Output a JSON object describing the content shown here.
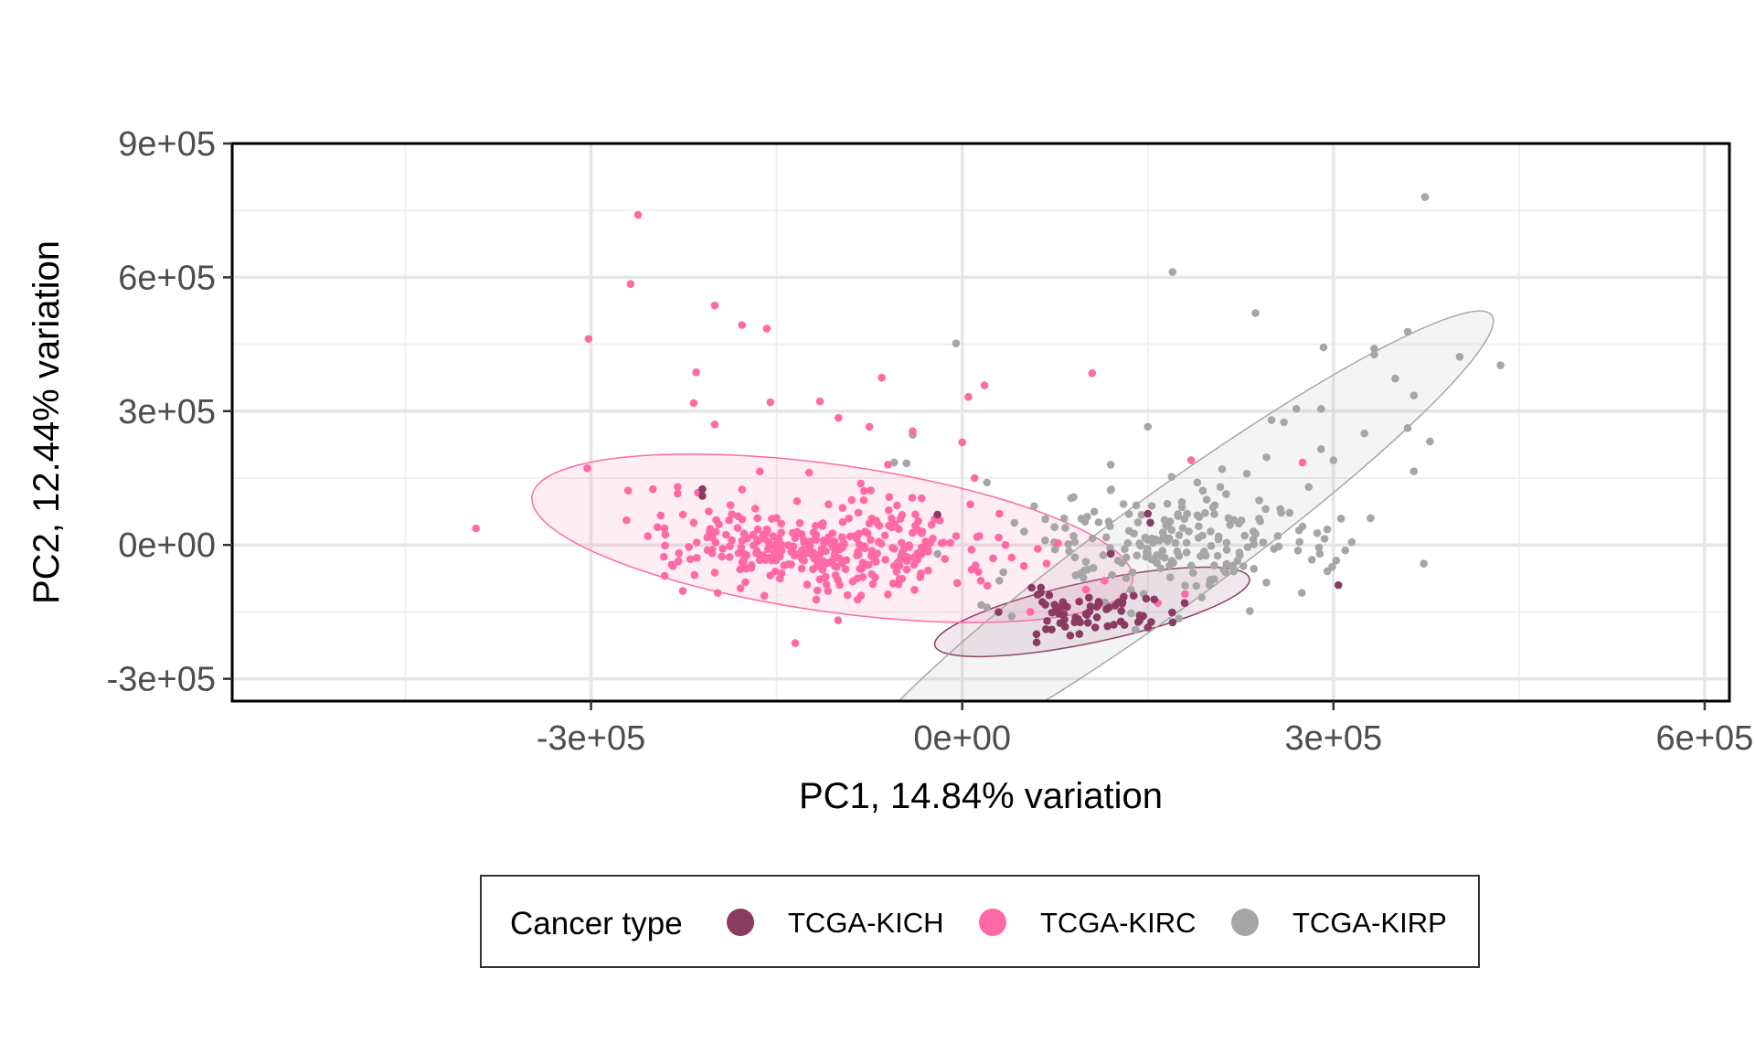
{
  "chart_data": {
    "type": "scatter",
    "title": "",
    "xlabel": "PC1, 14.84% variation",
    "ylabel": "PC2, 12.44% variation",
    "xlim": [
      -590000,
      620000
    ],
    "ylim": [
      -350000,
      900000
    ],
    "x_ticks": [
      -300000,
      0,
      300000,
      600000
    ],
    "x_tick_labels": [
      "-3e+05",
      "0e+00",
      "3e+05",
      "6e+05"
    ],
    "y_ticks": [
      -300000,
      0,
      300000,
      600000,
      900000
    ],
    "y_tick_labels": [
      "-3e+05",
      "0e+00",
      "3e+05",
      "6e+05",
      "9e+05"
    ],
    "grid": true,
    "legend": {
      "title": "Cancer type",
      "position": "bottom",
      "entries": [
        "TCGA-KICH",
        "TCGA-KIRC",
        "TCGA-KIRP"
      ]
    },
    "series": [
      {
        "name": "TCGA-KICH",
        "color": "#8B3A62",
        "ellipse": {
          "cx": 105000,
          "cy": -150000,
          "rx": 130000,
          "ry": 68000,
          "angle": 12
        },
        "cluster": {
          "cx": 105000,
          "cy": -150000,
          "sx": 32000,
          "sy": 24000,
          "n": 65,
          "seed": 11
        },
        "points": [
          [
            -210000,
            125000
          ],
          [
            -210000,
            110000
          ],
          [
            -20000,
            68000
          ],
          [
            150000,
            70000
          ],
          [
            152000,
            50000
          ],
          [
            120000,
            -20000
          ],
          [
            304000,
            -90000
          ],
          [
            150000,
            -185000
          ],
          [
            60000,
            -200000
          ]
        ]
      },
      {
        "name": "TCGA-KIRC",
        "color": "#FF69A5",
        "ellipse": {
          "cx": -105000,
          "cy": 15000,
          "rx": 245000,
          "ry": 165000,
          "angle": -8
        },
        "cluster": {
          "cx": -110000,
          "cy": -5000,
          "sx": 62000,
          "sy": 52000,
          "n": 340,
          "seed": 7
        },
        "points": [
          [
            -393000,
            37000
          ],
          [
            -262000,
            740000
          ],
          [
            -268000,
            585000
          ],
          [
            -302000,
            462000
          ],
          [
            -200000,
            537000
          ],
          [
            -178000,
            493000
          ],
          [
            -158000,
            485000
          ],
          [
            -215000,
            387000
          ],
          [
            -217000,
            318000
          ],
          [
            -200000,
            270000
          ],
          [
            -155000,
            320000
          ],
          [
            -115000,
            322000
          ],
          [
            -65000,
            375000
          ],
          [
            -100000,
            285000
          ],
          [
            -75000,
            265000
          ],
          [
            -40000,
            255000
          ],
          [
            -230000,
            130000
          ],
          [
            -250000,
            125000
          ],
          [
            -270000,
            122000
          ],
          [
            -303000,
            172000
          ],
          [
            -230000,
            115000
          ],
          [
            18000,
            358000
          ],
          [
            5000,
            332000
          ],
          [
            105000,
            385000
          ],
          [
            0,
            230000
          ],
          [
            10000,
            150000
          ],
          [
            30000,
            70000
          ],
          [
            35000,
            0
          ],
          [
            25000,
            -30000
          ],
          [
            -135000,
            -220000
          ],
          [
            115000,
            -80000
          ],
          [
            180000,
            -110000
          ],
          [
            158000,
            -130000
          ],
          [
            185000,
            190000
          ],
          [
            275000,
            185000
          ],
          [
            100000,
            -100000
          ],
          [
            55000,
            -150000
          ],
          [
            -5000,
            20000
          ],
          [
            15000,
            -80000
          ],
          [
            -60000,
            180000
          ]
        ]
      },
      {
        "name": "TCGA-KIRP",
        "color": "#A6A6A6",
        "ellipse": {
          "cx": 165000,
          "cy": -15000,
          "rx": 325000,
          "ry": 125000,
          "angle": 36
        },
        "cluster": {
          "cx": 170000,
          "cy": 0,
          "sx": 60000,
          "sy": 60000,
          "n": 190,
          "seed": 23
        },
        "points": [
          [
            374000,
            780000
          ],
          [
            170000,
            612000
          ],
          [
            237000,
            520000
          ],
          [
            360000,
            478000
          ],
          [
            402000,
            422000
          ],
          [
            435000,
            403000
          ],
          [
            292000,
            443000
          ],
          [
            333000,
            440000
          ],
          [
            333000,
            427000
          ],
          [
            350000,
            373000
          ],
          [
            365000,
            335000
          ],
          [
            -5000,
            452000
          ],
          [
            270000,
            305000
          ],
          [
            290000,
            305000
          ],
          [
            325000,
            250000
          ],
          [
            360000,
            262000
          ],
          [
            378000,
            232000
          ],
          [
            365000,
            165000
          ],
          [
            373000,
            -42000
          ],
          [
            150000,
            265000
          ],
          [
            -40000,
            247000
          ],
          [
            -45000,
            183000
          ],
          [
            -55000,
            185000
          ],
          [
            20000,
            140000
          ],
          [
            290000,
            215000
          ],
          [
            300000,
            190000
          ],
          [
            250000,
            280000
          ],
          [
            260000,
            275000
          ],
          [
            -30000,
            0
          ],
          [
            -20000,
            -20000
          ],
          [
            50000,
            30000
          ],
          [
            30000,
            -80000
          ],
          [
            20000,
            -140000
          ],
          [
            40000,
            -160000
          ],
          [
            90000,
            20000
          ],
          [
            75000,
            -10000
          ],
          [
            210000,
            170000
          ],
          [
            230000,
            160000
          ],
          [
            190000,
            140000
          ],
          [
            120000,
            180000
          ],
          [
            140000,
            -190000
          ],
          [
            175000,
            -165000
          ],
          [
            280000,
            130000
          ],
          [
            240000,
            100000
          ],
          [
            255000,
            20000
          ],
          [
            330000,
            60000
          ],
          [
            295000,
            35000
          ],
          [
            200000,
            -90000
          ]
        ]
      }
    ]
  }
}
